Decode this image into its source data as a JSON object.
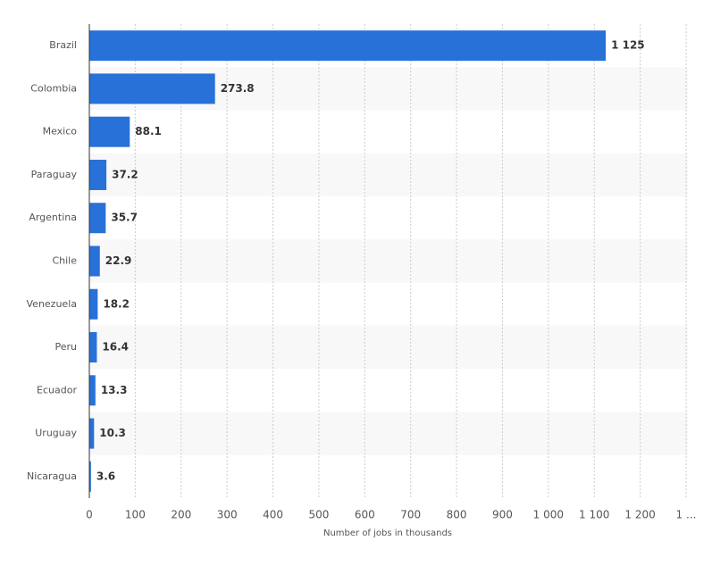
{
  "chart_data": {
    "type": "bar",
    "orientation": "horizontal",
    "x_label": "Number of jobs in thousands",
    "categories": [
      "Brazil",
      "Colombia",
      "Mexico",
      "Paraguay",
      "Argentina",
      "Chile",
      "Venezuela",
      "Peru",
      "Ecuador",
      "Uruguay",
      "Nicaragua"
    ],
    "values": [
      1125,
      273.8,
      88.1,
      37.2,
      35.7,
      22.9,
      18.2,
      16.4,
      13.3,
      10.3,
      3.6
    ],
    "value_labels": [
      "1 125",
      "273.8",
      "88.1",
      "37.2",
      "35.7",
      "22.9",
      "18.2",
      "16.4",
      "13.3",
      "10.3",
      "3.6"
    ],
    "color": "#2871d8",
    "xlim": [
      0,
      1300
    ],
    "xticks": [
      0,
      100,
      200,
      300,
      400,
      500,
      600,
      700,
      800,
      900,
      {
        "value": 1000,
        "label": "1 000"
      },
      {
        "value": 1100,
        "label": "1 100"
      },
      {
        "value": 1200,
        "label": "1 200"
      },
      {
        "value": 1300,
        "label": "1 ..."
      }
    ],
    "grid": true
  }
}
